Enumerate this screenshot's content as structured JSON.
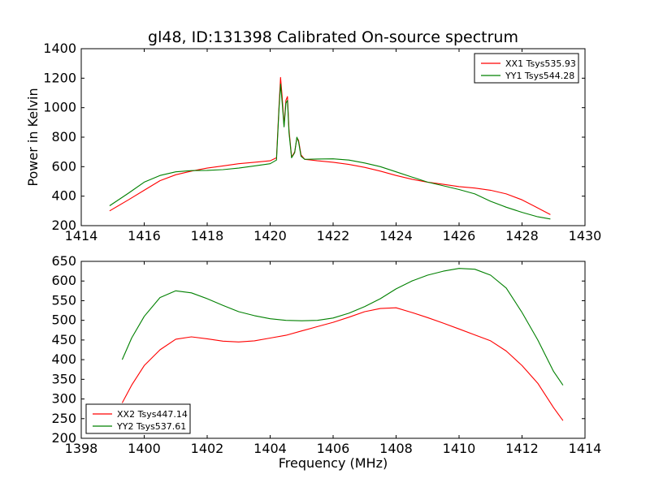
{
  "chart_data": [
    {
      "type": "line",
      "title": "gl48, ID:131398 Calibrated On-source spectrum",
      "xlabel": "",
      "ylabel": "Power in Kelvin",
      "xlim": [
        1414,
        1430
      ],
      "ylim": [
        200,
        1400
      ],
      "xticks": [
        "1414",
        "1416",
        "1418",
        "1420",
        "1422",
        "1424",
        "1426",
        "1428",
        "1430"
      ],
      "yticks": [
        "200",
        "400",
        "600",
        "800",
        "1000",
        "1200",
        "1400"
      ],
      "grid": false,
      "legend_position": "top-right",
      "series": [
        {
          "name": "XX1 Tsys535.93",
          "color": "#ff0000",
          "x": [
            1414.9,
            1415.5,
            1416,
            1416.5,
            1417,
            1417.5,
            1418,
            1418.5,
            1419,
            1419.5,
            1420,
            1420.2,
            1420.28,
            1420.33,
            1420.38,
            1420.44,
            1420.5,
            1420.55,
            1420.6,
            1420.68,
            1420.78,
            1420.85,
            1420.9,
            1420.98,
            1421.1,
            1421.5,
            1422,
            1422.5,
            1423,
            1423.5,
            1424,
            1424.5,
            1425,
            1425.5,
            1426,
            1426.5,
            1427,
            1427.5,
            1428,
            1428.5,
            1428.9
          ],
          "values": [
            300,
            375,
            440,
            505,
            545,
            570,
            590,
            605,
            620,
            630,
            640,
            660,
            1000,
            1205,
            1080,
            880,
            1050,
            1075,
            850,
            665,
            700,
            795,
            780,
            680,
            650,
            640,
            630,
            615,
            595,
            570,
            540,
            515,
            495,
            480,
            465,
            455,
            440,
            415,
            375,
            320,
            275
          ]
        },
        {
          "name": "YY1 Tsys544.28",
          "color": "#008000",
          "x": [
            1414.9,
            1415.5,
            1416,
            1416.5,
            1417,
            1417.5,
            1418,
            1418.5,
            1419,
            1419.5,
            1420,
            1420.2,
            1420.28,
            1420.33,
            1420.38,
            1420.44,
            1420.5,
            1420.55,
            1420.6,
            1420.68,
            1420.78,
            1420.85,
            1420.9,
            1420.98,
            1421.1,
            1421.5,
            1422,
            1422.5,
            1423,
            1423.5,
            1424,
            1424.5,
            1425,
            1425.5,
            1426,
            1426.5,
            1427,
            1427.5,
            1428,
            1428.5,
            1428.9
          ],
          "values": [
            335,
            420,
            495,
            540,
            565,
            573,
            575,
            580,
            590,
            605,
            620,
            645,
            980,
            1160,
            1040,
            870,
            1030,
            1050,
            830,
            660,
            695,
            800,
            770,
            670,
            650,
            652,
            653,
            645,
            625,
            600,
            565,
            530,
            495,
            470,
            445,
            415,
            365,
            325,
            290,
            260,
            245
          ]
        }
      ]
    },
    {
      "type": "line",
      "title": "",
      "xlabel": "Frequency (MHz)",
      "ylabel": "",
      "xlim": [
        1398,
        1414
      ],
      "ylim": [
        200,
        650
      ],
      "xticks": [
        "1398",
        "1400",
        "1402",
        "1404",
        "1406",
        "1408",
        "1410",
        "1412",
        "1414"
      ],
      "yticks": [
        "200",
        "250",
        "300",
        "350",
        "400",
        "450",
        "500",
        "550",
        "600",
        "650"
      ],
      "grid": false,
      "legend_position": "bottom-left",
      "series": [
        {
          "name": "XX2 Tsys447.14",
          "color": "#ff0000",
          "x": [
            1399.3,
            1399.6,
            1400,
            1400.5,
            1401,
            1401.5,
            1402,
            1402.5,
            1403,
            1403.5,
            1404,
            1404.5,
            1405,
            1405.5,
            1406,
            1406.5,
            1407,
            1407.5,
            1408,
            1408.5,
            1409,
            1409.5,
            1410,
            1410.5,
            1411,
            1411.5,
            1412,
            1412.5,
            1413,
            1413.3
          ],
          "values": [
            290,
            335,
            385,
            425,
            452,
            458,
            453,
            447,
            445,
            448,
            455,
            462,
            473,
            484,
            495,
            508,
            522,
            530,
            532,
            520,
            507,
            493,
            478,
            463,
            448,
            422,
            385,
            340,
            278,
            245
          ]
        },
        {
          "name": "YY2 Tsys537.61",
          "color": "#008000",
          "x": [
            1399.3,
            1399.6,
            1400,
            1400.5,
            1401,
            1401.5,
            1402,
            1402.5,
            1403,
            1403.5,
            1404,
            1404.5,
            1405,
            1405.5,
            1406,
            1406.5,
            1407,
            1407.5,
            1408,
            1408.5,
            1409,
            1409.5,
            1410,
            1410.5,
            1411,
            1411.5,
            1412,
            1412.5,
            1413,
            1413.3
          ],
          "values": [
            400,
            455,
            510,
            558,
            575,
            570,
            555,
            538,
            522,
            512,
            504,
            500,
            499,
            500,
            506,
            518,
            535,
            555,
            580,
            600,
            615,
            625,
            632,
            630,
            615,
            582,
            520,
            450,
            370,
            335
          ]
        }
      ]
    }
  ]
}
